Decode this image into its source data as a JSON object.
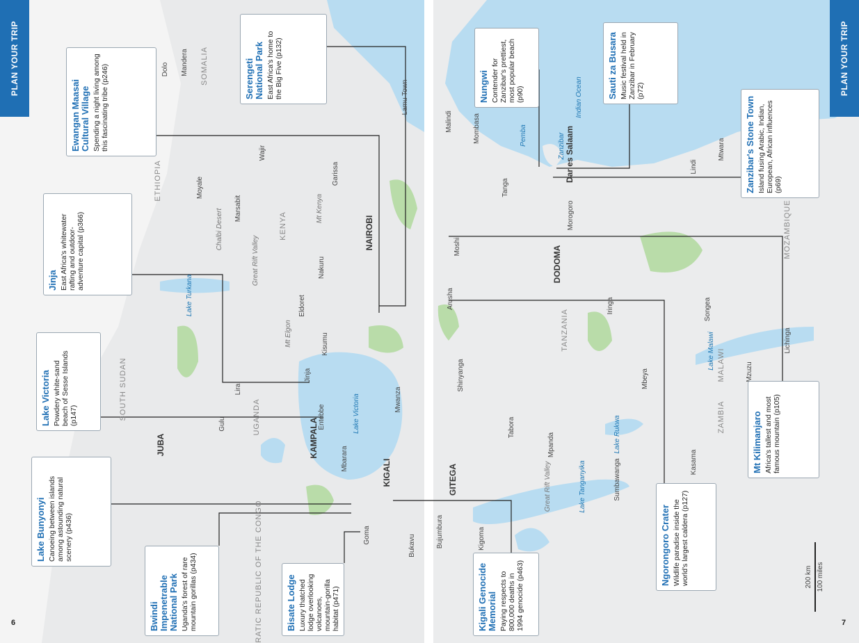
{
  "tabs": {
    "left": "PLAN YOUR TRIP",
    "right": "PLAN YOUR TRIP"
  },
  "page_numbers": {
    "left": "6",
    "right": "7"
  },
  "callouts": [
    {
      "title": "Serengeti National Park",
      "text": "East Africa's home to the Big Five (p132)"
    },
    {
      "title": "Ewangan Maasai Cultural Village",
      "text": "Spending a night living among this fascinating tribe (p246)"
    },
    {
      "title": "Jinja",
      "text": "East Africa's whitewater rafting and outdoor-adventure capital (p366)"
    },
    {
      "title": "Lake Victoria",
      "text": "Powdery white-sand beach of Sesse Islands (p147)"
    },
    {
      "title": "Lake Bunyonyi",
      "text": "Canoeing between islands among astounding natural scenery (p436)"
    },
    {
      "title": "Bwindi Impenetrable National Park",
      "text": "Uganda's forest of rare mountain gorillas (p434)"
    },
    {
      "title": "Bisate Lodge",
      "text": "Luxury thatched lodge overlooking volcanoes, mountain-gorilla habitat (p471)"
    },
    {
      "title": "Nungwi",
      "text": "Contender for Zanzibar's prettiest, most popular beach (p90)"
    },
    {
      "title": "Sauti za Busara",
      "text": "Music festival held in Zanzibar in February (p72)"
    },
    {
      "title": "Zanzibar's Stone Town",
      "text": "Island fusing Arabic, Indian, European, African influences (p69)"
    },
    {
      "title": "Mt Kilimanjaro",
      "text": "Africa's tallest and most famous mountain (p105)"
    },
    {
      "title": "Ngorongoro Crater",
      "text": "Wildlife paradise inside the world's largest caldera (p127)"
    },
    {
      "title": "Kigali Genocide Memorial",
      "text": "Paying respects to 800,000 deaths in 1994 genocide (p463)"
    }
  ],
  "places": [
    "ETHIOPIA",
    "SOMALIA",
    "KENYA",
    "UGANDA",
    "SOUTH SUDAN",
    "DEMOCRATIC REPUBLIC OF THE CONGO",
    "NAIROBI",
    "KAMPALA",
    "KIGALI",
    "JUBA",
    "Lake Turkana",
    "Lake Victoria",
    "Mandera",
    "Dolo",
    "Moyale",
    "Marsabit",
    "Wajir",
    "Garissa",
    "Lamu Town",
    "Eldoret",
    "Kisumu",
    "Nakuru",
    "Mwanza",
    "Entebbe",
    "Jinja",
    "Gulu",
    "Lira",
    "Mbarara",
    "Goma",
    "Bukavu",
    "Great Rift Valley",
    "Chalbi Desert",
    "Mt Kenya",
    "Mt Elgon",
    "TANZANIA",
    "ZAMBIA",
    "MALAWI",
    "MOZAMBIQUE",
    "DODOMA",
    "GITEGA",
    "Dar es Salaam",
    "Mombasa",
    "Malindi",
    "Tanga",
    "Arusha",
    "Moshi",
    "Morogoro",
    "Iringa",
    "Mbeya",
    "Songea",
    "Lindi",
    "Mtwara",
    "Lichinga",
    "Kigoma",
    "Bujumbura",
    "Shinyanga",
    "Tabora",
    "Lake Tanganyika",
    "Lake Malawi",
    "Indian Ocean",
    "Lake Rukwa",
    "Zanzibar",
    "Pemba",
    "Mpanda",
    "Sumbawanga",
    "Kasama",
    "Mzuzu",
    "Great Rift Valley"
  ],
  "scale": {
    "km": "200 km",
    "miles": "100 miles"
  }
}
